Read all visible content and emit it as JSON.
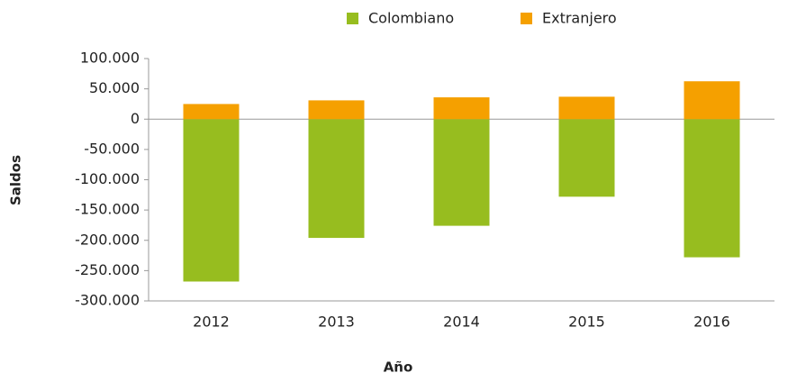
{
  "chart_data": {
    "type": "stacked_bar",
    "xlabel": "Año",
    "ylabel": "Saldos",
    "categories": [
      "2012",
      "2013",
      "2014",
      "2015",
      "2016"
    ],
    "series": [
      {
        "name": "Colombiano",
        "color": "#97bd1f",
        "values": [
          -268000,
          -196000,
          -176000,
          -128000,
          -228000
        ]
      },
      {
        "name": "Extranjero",
        "color": "#f5a000",
        "values": [
          25000,
          31000,
          36000,
          37000,
          62500
        ]
      }
    ],
    "ylim": [
      -300000,
      100000
    ],
    "yticks": [
      {
        "value": 100000,
        "label": "100.000"
      },
      {
        "value": 50000,
        "label": "50.000"
      },
      0,
      {
        "value": -50000,
        "label": "-50.000"
      },
      {
        "value": -100000,
        "label": "-100.000"
      },
      {
        "value": -150000,
        "label": "-150.000"
      },
      {
        "value": -200000,
        "label": "-200.000"
      },
      {
        "value": -250000,
        "label": "-250.000"
      },
      {
        "value": -300000,
        "label": "-300.000"
      }
    ],
    "legend": "top",
    "grid": false
  }
}
